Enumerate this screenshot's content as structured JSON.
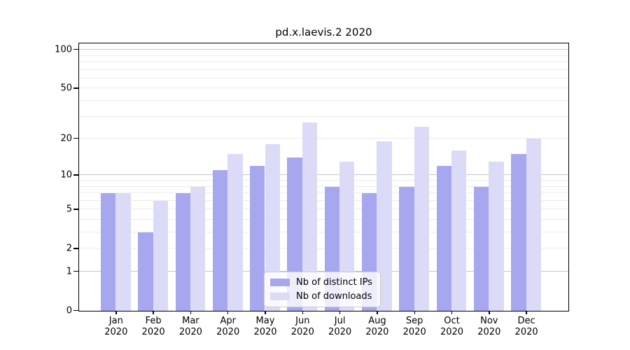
{
  "chart_data": {
    "type": "bar",
    "title": "pd.x.laevis.2 2020",
    "categories": [
      "Jan",
      "Feb",
      "Mar",
      "Apr",
      "May",
      "Jun",
      "Jul",
      "Aug",
      "Sep",
      "Oct",
      "Nov",
      "Dec"
    ],
    "category_year": "2020",
    "series": [
      {
        "name": "Nb of distinct IPs",
        "color": "#a7a7ef",
        "values": [
          7,
          3,
          7,
          11,
          12,
          14,
          8,
          7,
          8,
          12,
          8,
          15
        ]
      },
      {
        "name": "Nb of downloads",
        "color": "#dbdbf8",
        "values": [
          7,
          6,
          8,
          15,
          18,
          27,
          13,
          19,
          25,
          16,
          13,
          20
        ]
      }
    ],
    "yscale": "log1p",
    "ylim": [
      0,
      111
    ],
    "yticks": [
      0,
      1,
      2,
      5,
      10,
      20,
      50,
      100
    ],
    "major_gridlines": [
      1,
      10,
      100
    ],
    "minor_gridlines": [
      2,
      3,
      4,
      5,
      6,
      7,
      8,
      9,
      20,
      30,
      40,
      50,
      60,
      70,
      80,
      90
    ],
    "grid": true,
    "legend_position": "lower center"
  }
}
